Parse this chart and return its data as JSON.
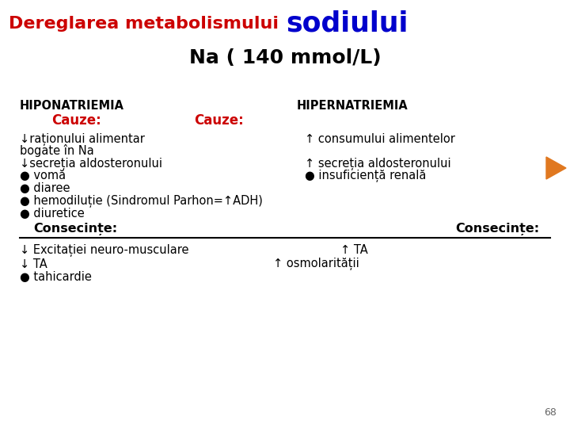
{
  "title_normal": "Dereglarea metabolismului ",
  "title_bold_blue": "sodiului",
  "subtitle": "Na ( 140 mmol/L)",
  "bg_color": "#ffffff",
  "title_color_normal": "#cc0000",
  "title_color_bold": "#0000cc",
  "subtitle_color": "#000000",
  "header_left": "HIPONATRIEMIA",
  "header_right": "HIPERNATRIEMIA",
  "cauze_left1": "Cauze:",
  "cauze_left2": "Cauze:",
  "consecinte_left": "Consecințe:",
  "consecinte_right": "Consecințe:",
  "page_number": "68",
  "arrow_color": "#e07820"
}
